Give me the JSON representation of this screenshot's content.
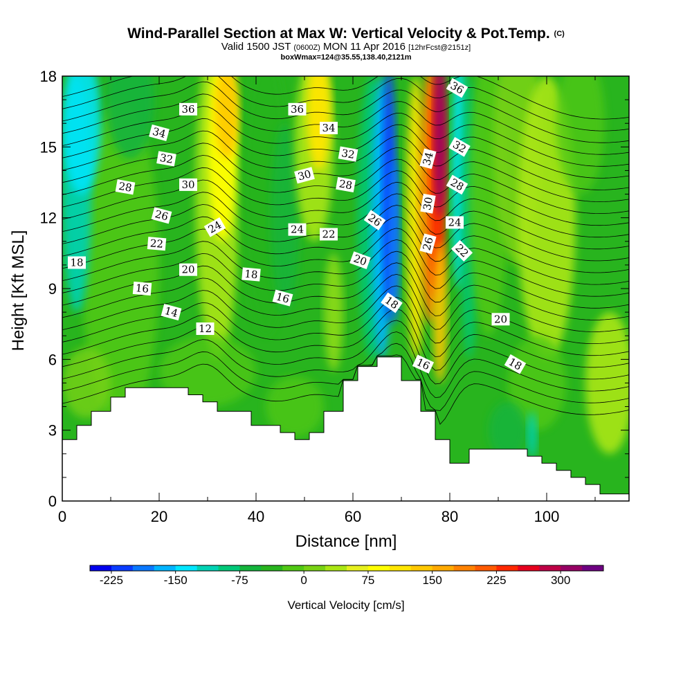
{
  "header": {
    "title_main": "Wind-Parallel Section at Max W: Vertical Velocity & Pot.Temp.",
    "title_mark": "(C)",
    "valid_prefix": "Valid 1500 JST",
    "valid_zone": "(0600Z)",
    "valid_date": "MON 11 Apr 2016",
    "valid_fcst": "[12hrFcst@2151z]",
    "box_info": "boxWmax=124@35.55,138.40,2121m"
  },
  "chart_data": {
    "type": "heatmap",
    "title": "Wind-Parallel Section at Max W: Vertical Velocity & Pot.Temp.",
    "xlabel": "Distance [nm]",
    "ylabel": "Height [Kft MSL]",
    "xlim": [
      0,
      117
    ],
    "ylim": [
      0,
      18
    ],
    "x_ticks": [
      "0",
      "20",
      "40",
      "60",
      "80",
      "100"
    ],
    "y_ticks": [
      "0",
      "3",
      "6",
      "9",
      "12",
      "15",
      "18"
    ],
    "colorbar": {
      "title": "Vertical Velocity [cm/s]",
      "tick_labels": [
        "-225",
        "-150",
        "-75",
        "0",
        "75",
        "150",
        "225",
        "300"
      ],
      "levels": [
        -250,
        350
      ],
      "colors": [
        "#0000ee",
        "#0a3cff",
        "#0a78ff",
        "#00b4ff",
        "#00e6ff",
        "#00d2b4",
        "#00c878",
        "#14b43c",
        "#28b41e",
        "#50c814",
        "#78d214",
        "#aae614",
        "#e6f01e",
        "#ffff00",
        "#ffe600",
        "#ffc800",
        "#ffaa00",
        "#ff8200",
        "#ff5a00",
        "#ff2800",
        "#e6001e",
        "#be0046",
        "#960064",
        "#6e0082"
      ]
    },
    "terrain_kft": [
      [
        0,
        2.6
      ],
      [
        3,
        2.6
      ],
      [
        3,
        3.2
      ],
      [
        6,
        3.2
      ],
      [
        6,
        3.8
      ],
      [
        10,
        3.8
      ],
      [
        10,
        4.4
      ],
      [
        13,
        4.4
      ],
      [
        13,
        4.8
      ],
      [
        26,
        4.8
      ],
      [
        26,
        4.5
      ],
      [
        29,
        4.5
      ],
      [
        29,
        4.2
      ],
      [
        32,
        4.2
      ],
      [
        32,
        3.8
      ],
      [
        39,
        3.8
      ],
      [
        39,
        3.2
      ],
      [
        45,
        3.2
      ],
      [
        45,
        2.9
      ],
      [
        48,
        2.9
      ],
      [
        48,
        2.6
      ],
      [
        51,
        2.6
      ],
      [
        51,
        2.9
      ],
      [
        54,
        2.9
      ],
      [
        54,
        3.8
      ],
      [
        58,
        3.8
      ],
      [
        58,
        5.1
      ],
      [
        61,
        5.1
      ],
      [
        61,
        5.7
      ],
      [
        65,
        5.7
      ],
      [
        65,
        6.1
      ],
      [
        70,
        6.1
      ],
      [
        70,
        5.1
      ],
      [
        74,
        5.1
      ],
      [
        74,
        3.8
      ],
      [
        77,
        3.8
      ],
      [
        77,
        2.6
      ],
      [
        80,
        2.6
      ],
      [
        80,
        1.6
      ],
      [
        84,
        1.6
      ],
      [
        84,
        2.2
      ],
      [
        96,
        2.2
      ],
      [
        96,
        1.9
      ],
      [
        99,
        1.9
      ],
      [
        99,
        1.6
      ],
      [
        102,
        1.6
      ],
      [
        102,
        1.3
      ],
      [
        105,
        1.3
      ],
      [
        105,
        1.0
      ],
      [
        108,
        1.0
      ],
      [
        108,
        0.7
      ],
      [
        111,
        0.7
      ],
      [
        111,
        0.3
      ],
      [
        117,
        0.3
      ],
      [
        117,
        0
      ]
    ],
    "w_features": [
      {
        "name": "cyan-left",
        "x": 4,
        "y": 13,
        "value": -60
      },
      {
        "name": "yellow-left",
        "x": 33,
        "y": 15,
        "value": 80
      },
      {
        "name": "yellow-mid",
        "x": 53,
        "y": 15.5,
        "value": 75
      },
      {
        "name": "blue-core",
        "x": 68,
        "y": 14,
        "value": -225
      },
      {
        "name": "red-core",
        "x": 78,
        "y": 14,
        "value": 325
      },
      {
        "name": "light-right",
        "x": 112,
        "y": 5,
        "value": 50
      }
    ],
    "theta_labels": [
      {
        "text": "36",
        "x": 26,
        "y": 16.6,
        "angle": 0
      },
      {
        "text": "34",
        "x": 20,
        "y": 15.6,
        "angle": 15
      },
      {
        "text": "32",
        "x": 21.5,
        "y": 14.5,
        "angle": 10
      },
      {
        "text": "30",
        "x": 26,
        "y": 13.4,
        "angle": 0
      },
      {
        "text": "28",
        "x": 13,
        "y": 13.3,
        "angle": 10
      },
      {
        "text": "26",
        "x": 20.5,
        "y": 12.1,
        "angle": 15
      },
      {
        "text": "24",
        "x": 31.5,
        "y": 11.6,
        "angle": -30
      },
      {
        "text": "22",
        "x": 19.5,
        "y": 10.9,
        "angle": 5
      },
      {
        "text": "20",
        "x": 26,
        "y": 9.8,
        "angle": 0
      },
      {
        "text": "18",
        "x": 3,
        "y": 10.1,
        "angle": 0
      },
      {
        "text": "18",
        "x": 39,
        "y": 9.6,
        "angle": 5
      },
      {
        "text": "16",
        "x": 16.5,
        "y": 9.0,
        "angle": 5
      },
      {
        "text": "16",
        "x": 45.5,
        "y": 8.6,
        "angle": 15
      },
      {
        "text": "14",
        "x": 22.5,
        "y": 8.0,
        "angle": 15
      },
      {
        "text": "12",
        "x": 29.5,
        "y": 7.3,
        "angle": 0
      },
      {
        "text": "36",
        "x": 48.5,
        "y": 16.6,
        "angle": 0
      },
      {
        "text": "34",
        "x": 55,
        "y": 15.8,
        "angle": 0
      },
      {
        "text": "32",
        "x": 59,
        "y": 14.7,
        "angle": 10
      },
      {
        "text": "30",
        "x": 50,
        "y": 13.8,
        "angle": -15
      },
      {
        "text": "28",
        "x": 58.5,
        "y": 13.4,
        "angle": 10
      },
      {
        "text": "26",
        "x": 64.5,
        "y": 11.9,
        "angle": 35
      },
      {
        "text": "24",
        "x": 48.5,
        "y": 11.5,
        "angle": 0
      },
      {
        "text": "22",
        "x": 55,
        "y": 11.3,
        "angle": 0
      },
      {
        "text": "20",
        "x": 61.5,
        "y": 10.2,
        "angle": 20
      },
      {
        "text": "18",
        "x": 68,
        "y": 8.4,
        "angle": 35
      },
      {
        "text": "16",
        "x": 74.5,
        "y": 5.8,
        "angle": 25
      },
      {
        "text": "36",
        "x": 81.5,
        "y": 17.5,
        "angle": 30
      },
      {
        "text": "34",
        "x": 75.5,
        "y": 14.5,
        "angle": -75
      },
      {
        "text": "32",
        "x": 82,
        "y": 15.0,
        "angle": 30
      },
      {
        "text": "30",
        "x": 75.5,
        "y": 12.6,
        "angle": -80
      },
      {
        "text": "28",
        "x": 81.5,
        "y": 13.4,
        "angle": 30
      },
      {
        "text": "26",
        "x": 75.5,
        "y": 10.9,
        "angle": -75
      },
      {
        "text": "24",
        "x": 81,
        "y": 11.8,
        "angle": 0
      },
      {
        "text": "22",
        "x": 82.5,
        "y": 10.6,
        "angle": 45
      },
      {
        "text": "20",
        "x": 90.5,
        "y": 7.7,
        "angle": 0
      },
      {
        "text": "18",
        "x": 93.5,
        "y": 5.8,
        "angle": 30
      }
    ]
  }
}
